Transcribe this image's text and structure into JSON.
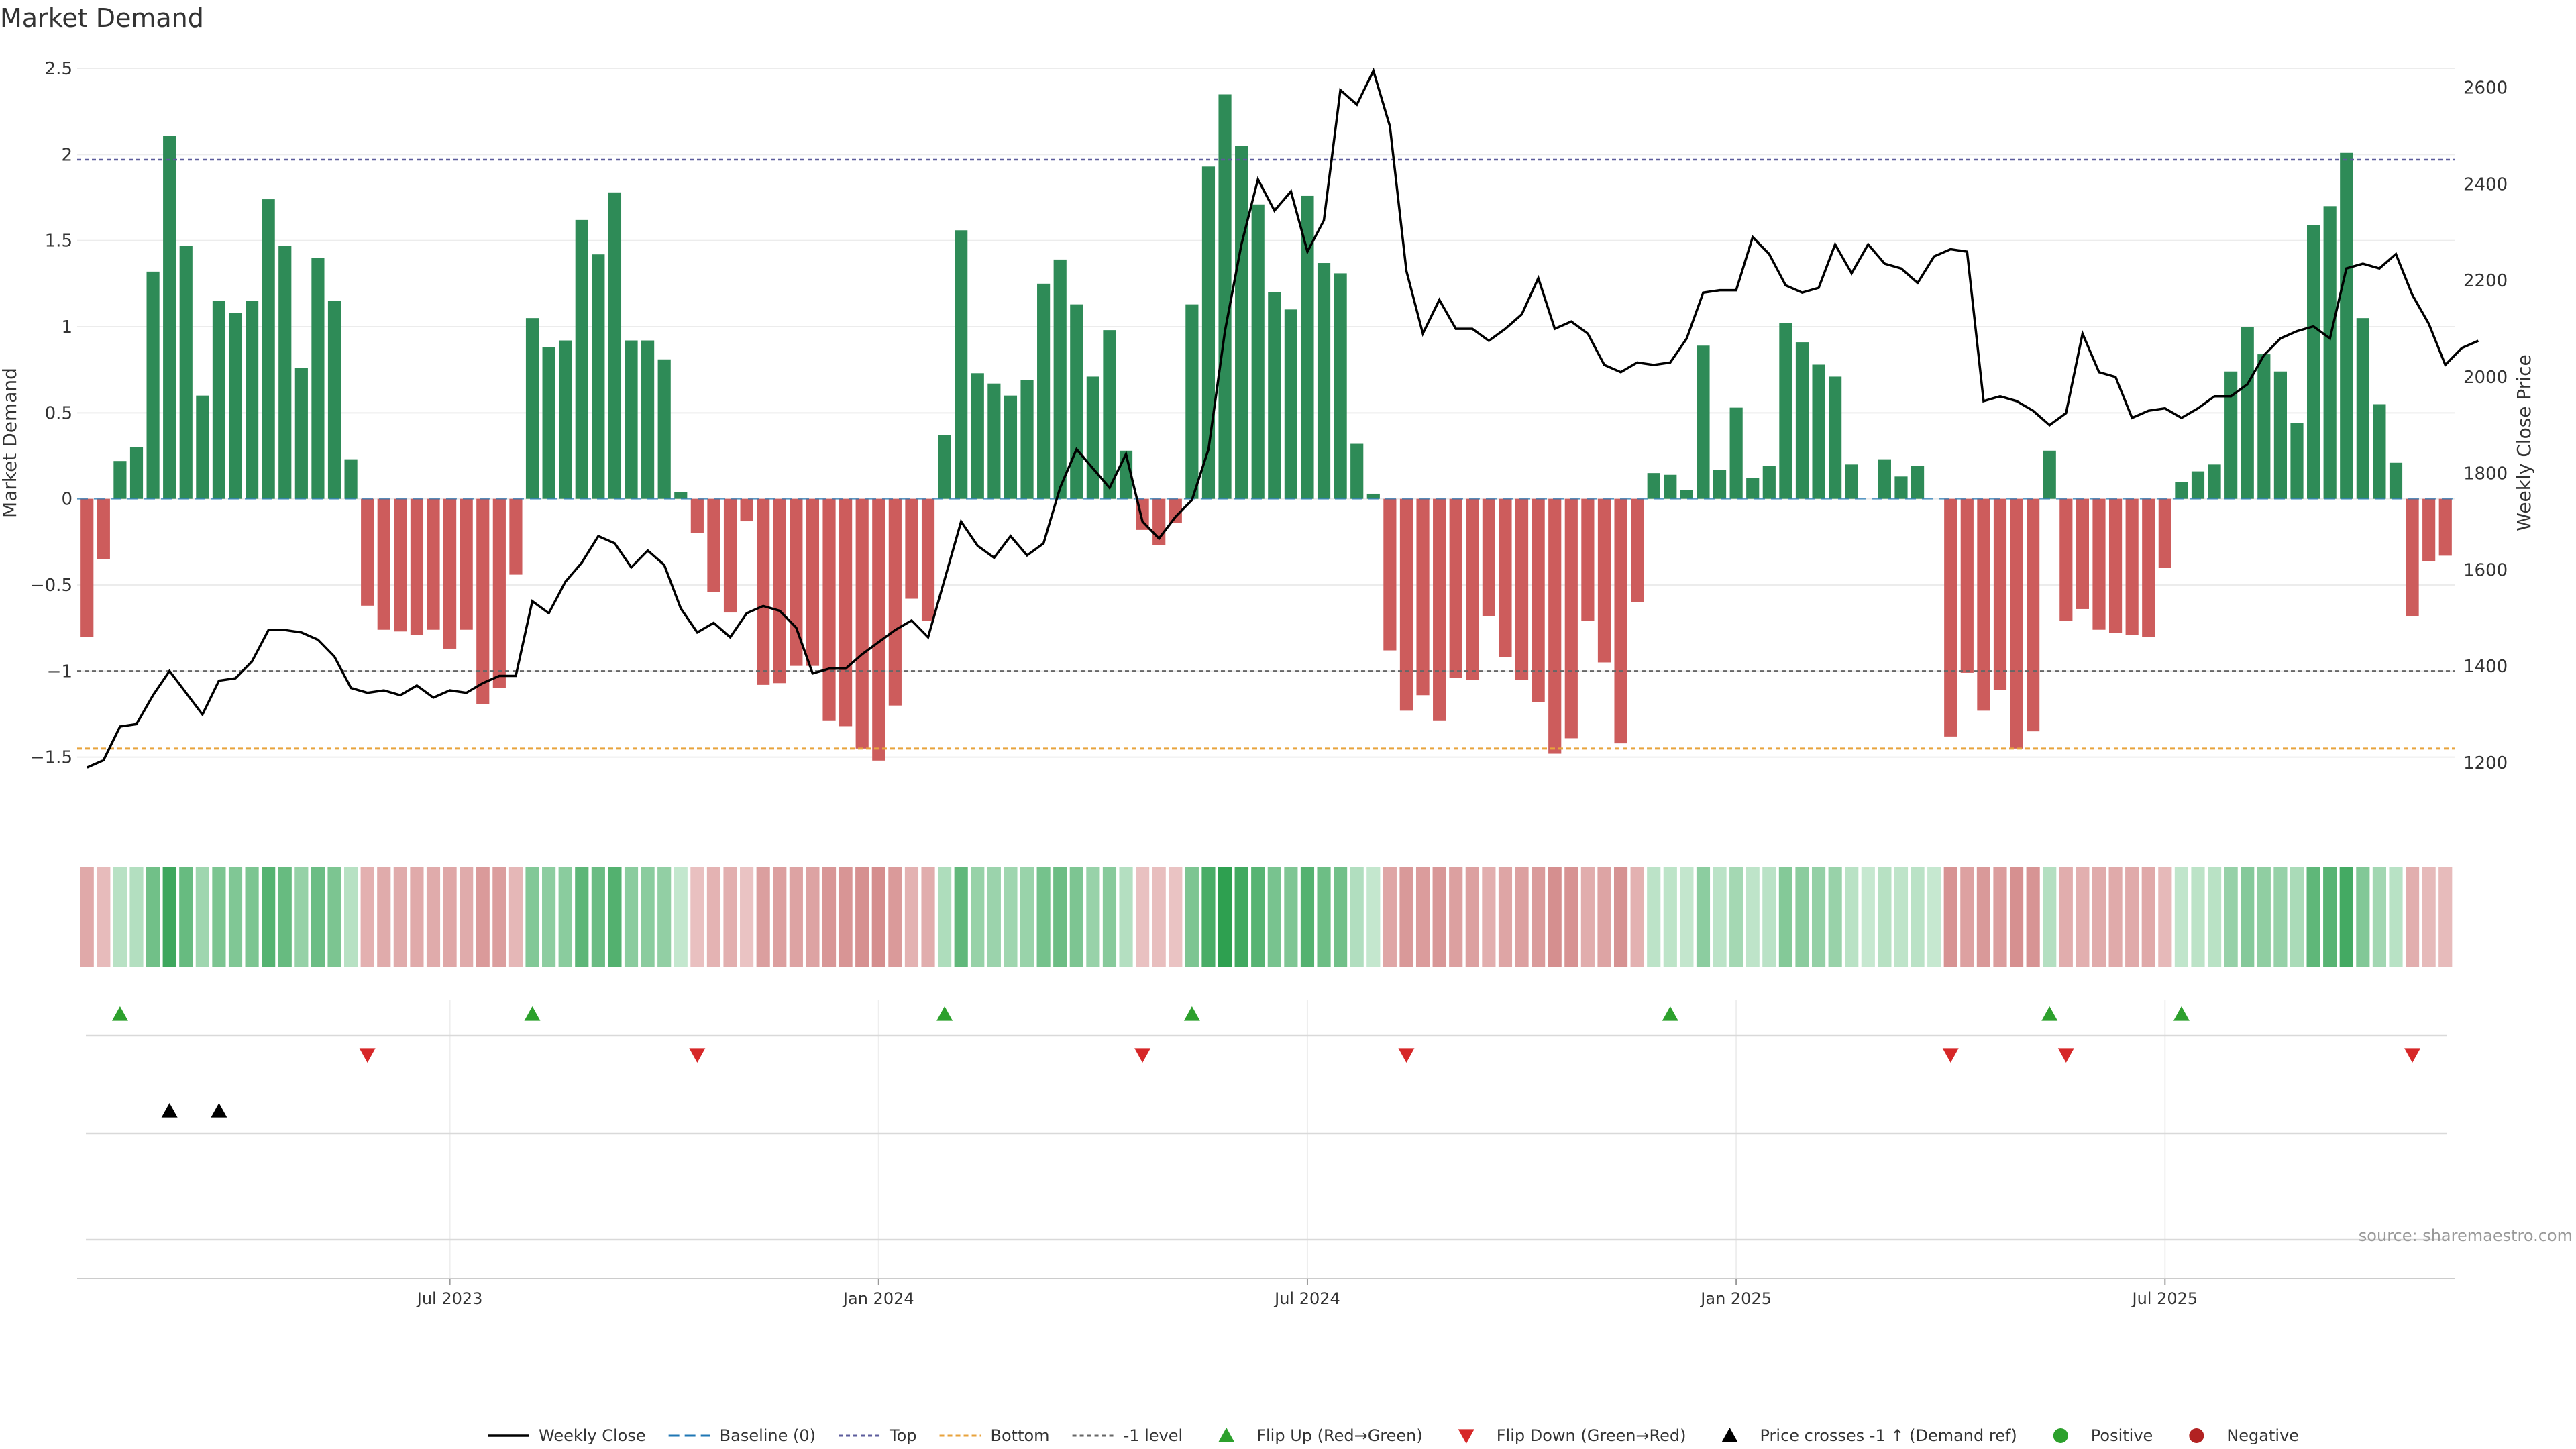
{
  "chart_data": {
    "type": "bar",
    "title": "Market Demand",
    "ylabel": "Market Demand",
    "y2label": "Weekly Close Price",
    "ylim": [
      -1.7,
      2.5
    ],
    "y2lim": [
      1140,
      2640
    ],
    "yticks": [
      -1.5,
      -1,
      -0.5,
      0,
      0.5,
      1,
      1.5,
      2,
      2.5
    ],
    "ytick_labels": [
      "−1.5",
      "−1",
      "−0.5",
      "0",
      "0.5",
      "1",
      "1.5",
      "2",
      "2.5"
    ],
    "y2ticks": [
      1200,
      1400,
      1600,
      1800,
      2000,
      2200,
      2400,
      2600
    ],
    "y2tick_labels": [
      "1200",
      "1400",
      "1600",
      "1800",
      "2000",
      "2200",
      "2400",
      "2600"
    ],
    "x_range_weeks": [
      -0.6,
      143.6
    ],
    "xtick_weeks": [
      22,
      48,
      74,
      100,
      126
    ],
    "xtick_labels": [
      "Jul 2023",
      "Jan 2024",
      "Jul 2024",
      "Jan 2025",
      "Jul 2025"
    ],
    "levels": {
      "top": 1.97,
      "bottom": -1.45,
      "minus_one": -1.0,
      "baseline": 0
    },
    "colors": {
      "positive": "#2e8b57",
      "negative": "#cd5c5c",
      "close_line": "#000000",
      "top_line": "#5c5c9c",
      "bottom_line": "#e8a33c",
      "minus_one_line": "#666666",
      "baseline_line": "#1f77b4",
      "flip_up": "#2ca02c",
      "flip_down": "#d62728",
      "price_cross": "#000000",
      "positive_dot": "#2ca02c",
      "negative_dot": "#b22222"
    },
    "demand": [
      -0.8,
      -0.35,
      0.22,
      0.3,
      1.32,
      2.11,
      1.47,
      0.6,
      1.15,
      1.08,
      1.15,
      1.74,
      1.47,
      0.76,
      1.4,
      1.15,
      0.23,
      -0.62,
      -0.76,
      -0.77,
      -0.79,
      -0.76,
      -0.87,
      -0.76,
      -1.19,
      -1.1,
      -0.44,
      1.05,
      0.88,
      0.92,
      1.62,
      1.42,
      1.78,
      0.92,
      0.92,
      0.81,
      0.04,
      -0.2,
      -0.54,
      -0.66,
      -0.13,
      -1.08,
      -1.07,
      -0.97,
      -0.97,
      -1.29,
      -1.32,
      -1.45,
      -1.52,
      -1.2,
      -0.58,
      -0.71,
      0.37,
      1.56,
      0.73,
      0.67,
      0.6,
      0.69,
      1.25,
      1.39,
      1.13,
      0.71,
      0.98,
      0.28,
      -0.18,
      -0.27,
      -0.14,
      1.13,
      1.93,
      2.35,
      2.05,
      1.71,
      1.2,
      1.1,
      1.76,
      1.37,
      1.31,
      0.32,
      0.03,
      -0.88,
      -1.23,
      -1.14,
      -1.29,
      -1.04,
      -1.05,
      -0.68,
      -0.92,
      -1.05,
      -1.18,
      -1.48,
      -1.39,
      -0.71,
      -0.95,
      -1.42,
      -0.6,
      0.15,
      0.14,
      0.05,
      0.89,
      0.17,
      0.53,
      0.12,
      0.19,
      1.02,
      0.91,
      0.78,
      0.71,
      0.2,
      0.0,
      0.23,
      0.13,
      0.19,
      0.0,
      -1.38,
      -1.01,
      -1.23,
      -1.11,
      -1.45,
      -1.35,
      0.28,
      -0.71,
      -0.64,
      -0.76,
      -0.78,
      -0.79,
      -0.8,
      -0.4,
      0.1,
      0.16,
      0.2,
      0.74,
      1.0,
      0.84,
      0.74,
      0.44,
      1.59,
      1.7,
      2.01,
      1.05,
      0.55,
      0.21,
      -0.68,
      -0.36,
      -0.33
    ],
    "close": [
      1190,
      1205,
      1275,
      1280,
      1340,
      1390,
      1345,
      1300,
      1370,
      1375,
      1410,
      1475,
      1475,
      1470,
      1455,
      1420,
      1355,
      1345,
      1350,
      1340,
      1360,
      1335,
      1350,
      1345,
      1365,
      1380,
      1380,
      1535,
      1510,
      1575,
      1615,
      1670,
      1655,
      1605,
      1640,
      1610,
      1520,
      1470,
      1490,
      1460,
      1510,
      1525,
      1515,
      1480,
      1385,
      1395,
      1395,
      1425,
      1450,
      1475,
      1495,
      1460,
      1580,
      1700,
      1650,
      1625,
      1670,
      1630,
      1655,
      1770,
      1850,
      1810,
      1770,
      1840,
      1700,
      1665,
      1710,
      1745,
      1850,
      2095,
      2275,
      2410,
      2345,
      2385,
      2260,
      2325,
      2595,
      2565,
      2635,
      2520,
      2220,
      2090,
      2160,
      2100,
      2100,
      2075,
      2100,
      2130,
      2205,
      2100,
      2115,
      2090,
      2025,
      2010,
      2030,
      2025,
      2030,
      2080,
      2175,
      2180,
      2180,
      2290,
      2255,
      2190,
      2175,
      2185,
      2275,
      2215,
      2275,
      2235,
      2225,
      2195,
      2250,
      2265,
      2260,
      1950,
      1960,
      1950,
      1930,
      1900,
      1925,
      2090,
      2010,
      2000,
      1915,
      1930,
      1935,
      1915,
      1935,
      1960,
      1960,
      1985,
      2045,
      2080,
      2095,
      2105,
      2080,
      2225,
      2235,
      2225,
      2255,
      2170,
      2110,
      2025,
      2060,
      2075
    ],
    "flip_up_weeks": [
      2,
      27,
      52,
      67,
      96,
      119,
      127
    ],
    "flip_down_weeks": [
      17,
      37,
      64,
      80,
      113,
      120,
      141
    ],
    "price_cross_weeks": [
      5,
      8
    ],
    "legend": [
      "Weekly Close",
      "Baseline (0)",
      "Top",
      "Bottom",
      "-1 level",
      "Flip Up (Red→Green)",
      "Flip Down (Green→Red)",
      "Price crosses -1 ↑ (Demand ref)",
      "Positive",
      "Negative"
    ],
    "legend_position": "bottom-center",
    "annotations": {
      "source": "source: sharemaestro.com"
    }
  }
}
